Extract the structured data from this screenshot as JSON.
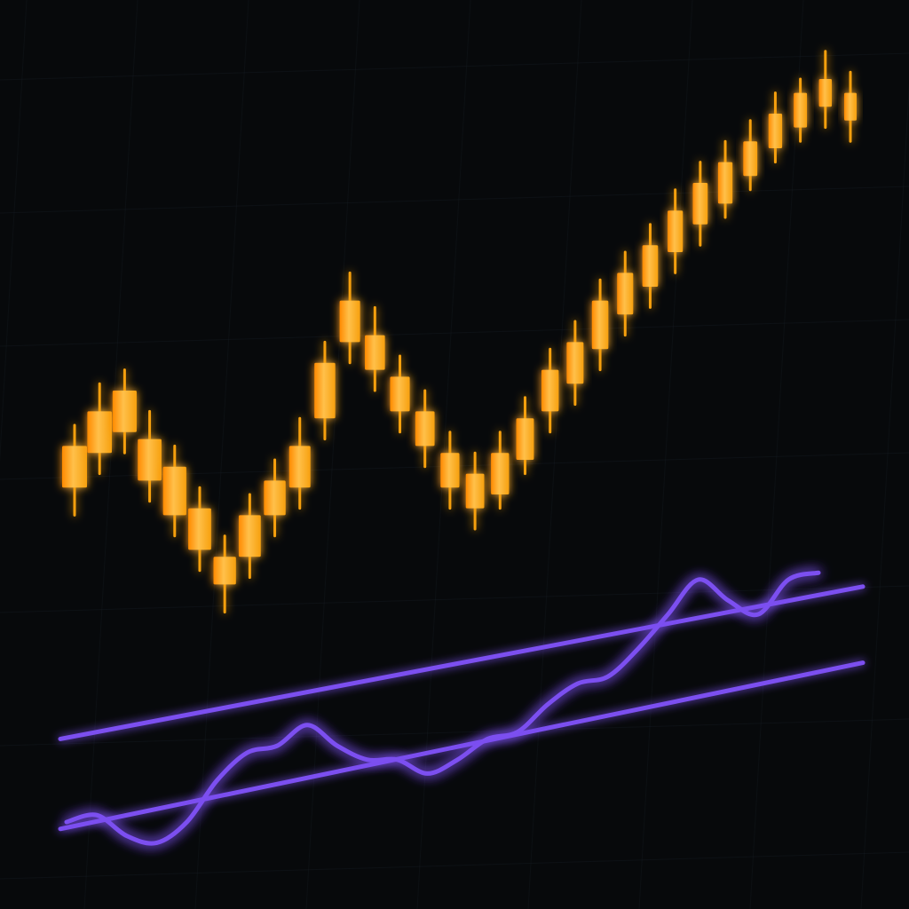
{
  "colors": {
    "background": "#07090b",
    "grid": "#1a2028",
    "candle": "#f7a00e",
    "candle_highlight": "#ffc04a",
    "candle_glow": "#ff8a00",
    "oscillator": "#7b4ff0",
    "oscillator_glow": "#6a3ce0"
  },
  "chart_data": {
    "type": "candlestick",
    "title": "",
    "xlabel": "",
    "ylabel": "",
    "grid": true,
    "legend": "none",
    "ylim": [
      0,
      100
    ],
    "candles": [
      {
        "open": 36,
        "close": 42,
        "high": 45,
        "low": 32
      },
      {
        "open": 41,
        "close": 47,
        "high": 51,
        "low": 38
      },
      {
        "open": 44,
        "close": 50,
        "high": 53,
        "low": 41
      },
      {
        "open": 37,
        "close": 43,
        "high": 47,
        "low": 34
      },
      {
        "open": 32,
        "close": 39,
        "high": 42,
        "low": 29
      },
      {
        "open": 27,
        "close": 33,
        "high": 36,
        "low": 24
      },
      {
        "open": 22,
        "close": 26,
        "high": 29,
        "low": 18
      },
      {
        "open": 26,
        "close": 32,
        "high": 35,
        "low": 23
      },
      {
        "open": 32,
        "close": 37,
        "high": 40,
        "low": 29
      },
      {
        "open": 36,
        "close": 42,
        "high": 46,
        "low": 33
      },
      {
        "open": 46,
        "close": 54,
        "high": 57,
        "low": 43
      },
      {
        "open": 57,
        "close": 63,
        "high": 67,
        "low": 54
      },
      {
        "open": 53,
        "close": 58,
        "high": 62,
        "low": 50
      },
      {
        "open": 47,
        "close": 52,
        "high": 55,
        "low": 44
      },
      {
        "open": 42,
        "close": 47,
        "high": 50,
        "low": 39
      },
      {
        "open": 36,
        "close": 41,
        "high": 44,
        "low": 33
      },
      {
        "open": 33,
        "close": 38,
        "high": 41,
        "low": 30
      },
      {
        "open": 35,
        "close": 41,
        "high": 44,
        "low": 33
      },
      {
        "open": 40,
        "close": 46,
        "high": 49,
        "low": 38
      },
      {
        "open": 47,
        "close": 53,
        "high": 56,
        "low": 44
      },
      {
        "open": 51,
        "close": 57,
        "high": 60,
        "low": 48
      },
      {
        "open": 56,
        "close": 63,
        "high": 66,
        "low": 53
      },
      {
        "open": 61,
        "close": 67,
        "high": 70,
        "low": 58
      },
      {
        "open": 65,
        "close": 71,
        "high": 74,
        "low": 62
      },
      {
        "open": 70,
        "close": 76,
        "high": 79,
        "low": 67
      },
      {
        "open": 74,
        "close": 80,
        "high": 83,
        "low": 71
      },
      {
        "open": 77,
        "close": 83,
        "high": 86,
        "low": 75
      },
      {
        "open": 81,
        "close": 86,
        "high": 89,
        "low": 79
      },
      {
        "open": 85,
        "close": 90,
        "high": 93,
        "low": 83
      },
      {
        "open": 88,
        "close": 93,
        "high": 95,
        "low": 86
      },
      {
        "open": 91,
        "close": 95,
        "high": 99,
        "low": 88
      },
      {
        "open": 89,
        "close": 93,
        "high": 96,
        "low": 86
      }
    ],
    "oscillator": {
      "values": [
        5,
        6,
        3,
        2,
        5,
        11,
        15,
        16,
        19,
        16,
        14,
        14,
        12,
        14,
        17,
        18,
        22,
        25,
        26,
        30,
        35,
        40,
        37,
        35,
        40,
        41
      ],
      "bands": [
        {
          "y_start": 17,
          "y_end": 39
        },
        {
          "y_start": 4,
          "y_end": 28
        }
      ]
    }
  }
}
